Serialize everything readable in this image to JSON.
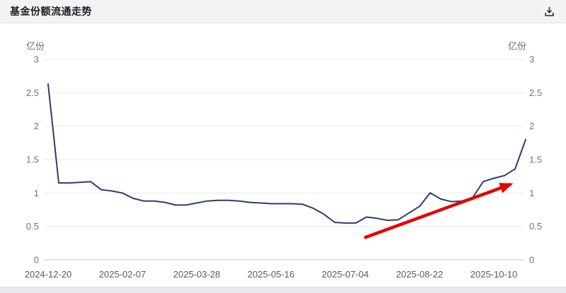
{
  "header": {
    "title": "基金份额流通走势",
    "download_icon": "download-icon"
  },
  "chart_data": {
    "type": "line",
    "title": "基金份额流通走势",
    "unit_label_left": "亿份",
    "unit_label_right": "亿份",
    "ylim": [
      0,
      3
    ],
    "grid": true,
    "legend": "none",
    "series_color": "#2e3c6e",
    "grid_color": "#e8e9ec",
    "axis_line_color": "#c7c9ce",
    "y_tick_text_color": "#70747c",
    "x_tick_text_color": "#555a65",
    "unit_text_color": "#686d76",
    "y_ticks": [
      0,
      0.5,
      1,
      1.5,
      2,
      2.5,
      3
    ],
    "y_tick_labels": [
      "0",
      "0.5",
      "1",
      "1.5",
      "2",
      "2.5",
      "3"
    ],
    "x_tick_labels": [
      "2024-12-20",
      "2025-02-07",
      "2025-03-28",
      "2025-05-16",
      "2025-07-04",
      "2025-08-22",
      "2025-10-10"
    ],
    "x_tick_indices": [
      0,
      7,
      14,
      21,
      28,
      35,
      42
    ],
    "x": [
      "2024-12-20",
      "2024-12-27",
      "2025-01-03",
      "2025-01-10",
      "2025-01-17",
      "2025-01-24",
      "2025-01-31",
      "2025-02-07",
      "2025-02-14",
      "2025-02-21",
      "2025-02-28",
      "2025-03-07",
      "2025-03-14",
      "2025-03-21",
      "2025-03-28",
      "2025-04-04",
      "2025-04-11",
      "2025-04-18",
      "2025-04-25",
      "2025-05-02",
      "2025-05-09",
      "2025-05-16",
      "2025-05-23",
      "2025-05-30",
      "2025-06-06",
      "2025-06-13",
      "2025-06-20",
      "2025-06-27",
      "2025-07-04",
      "2025-07-11",
      "2025-07-18",
      "2025-07-25",
      "2025-08-01",
      "2025-08-08",
      "2025-08-15",
      "2025-08-22",
      "2025-08-29",
      "2025-09-05",
      "2025-09-12",
      "2025-09-19",
      "2025-09-26",
      "2025-10-03",
      "2025-10-10",
      "2025-10-17",
      "2025-10-24",
      "2025-10-31"
    ],
    "values": [
      2.63,
      1.15,
      1.15,
      1.16,
      1.17,
      1.05,
      1.03,
      1.0,
      0.92,
      0.88,
      0.88,
      0.86,
      0.82,
      0.82,
      0.85,
      0.88,
      0.89,
      0.89,
      0.88,
      0.86,
      0.85,
      0.84,
      0.84,
      0.84,
      0.83,
      0.77,
      0.68,
      0.56,
      0.55,
      0.55,
      0.64,
      0.62,
      0.59,
      0.6,
      0.7,
      0.8,
      1.0,
      0.91,
      0.87,
      0.88,
      0.93,
      1.17,
      1.22,
      1.26,
      1.36,
      1.8
    ],
    "annotation": {
      "type": "arrow",
      "color": "#e60000",
      "from": {
        "index": 29.8,
        "value": 0.33
      },
      "to": {
        "index": 43.6,
        "value": 1.13
      }
    }
  }
}
